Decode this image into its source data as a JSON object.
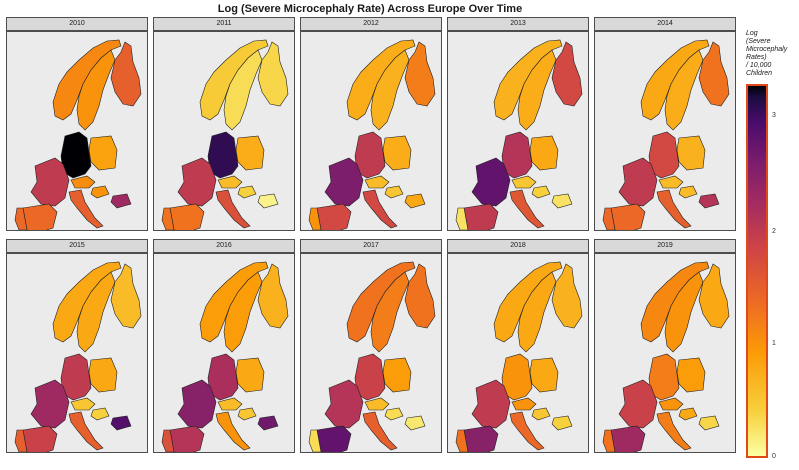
{
  "title": "Log (Severe Microcephaly Rate) Across Europe Over Time",
  "legend": {
    "title": "Log\n(Severe\nMicrocephaly\nRates)\n/ 10,000\nChildren",
    "ticks": [
      "3",
      "2",
      "1",
      "0"
    ],
    "range": [
      0,
      3.3
    ],
    "palette": "inferno"
  },
  "panels": [
    {
      "year": "2010",
      "values": {
        "norway": 1.1,
        "sweden": 1.0,
        "finland": 1.5,
        "germany": 3.3,
        "france": 2.0,
        "spain": 1.4,
        "portugal": 1.4,
        "italy": 1.5,
        "poland": 0.85,
        "austria": 1.05,
        "hungary": 1.0,
        "bulgaria": 2.3
      }
    },
    {
      "year": "2011",
      "values": {
        "norway": 0.45,
        "sweden": 0.3,
        "finland": 0.35,
        "germany": 3.1,
        "france": 2.0,
        "spain": 1.3,
        "portugal": 1.3,
        "italy": 1.7,
        "poland": 0.75,
        "austria": 0.6,
        "hungary": 0.4,
        "bulgaria": 0.1
      }
    },
    {
      "year": "2012",
      "values": {
        "norway": 0.75,
        "sweden": 0.7,
        "finland": 1.2,
        "germany": 2.0,
        "france": 2.6,
        "spain": 1.8,
        "portugal": 1.0,
        "italy": 1.8,
        "poland": 0.75,
        "austria": 0.6,
        "hungary": 0.5,
        "bulgaria": 0.8
      }
    },
    {
      "year": "2013",
      "values": {
        "norway": 0.7,
        "sweden": 0.75,
        "finland": 1.8,
        "germany": 2.1,
        "france": 2.8,
        "spain": 2.0,
        "portugal": 0.25,
        "italy": 1.6,
        "poland": 0.8,
        "austria": 0.5,
        "hungary": 0.4,
        "bulgaria": 0.25
      }
    },
    {
      "year": "2014",
      "values": {
        "norway": 0.8,
        "sweden": 0.75,
        "finland": 1.3,
        "germany": 1.8,
        "france": 2.0,
        "spain": 1.4,
        "portugal": 1.4,
        "italy": 1.5,
        "poland": 0.7,
        "austria": 0.6,
        "hungary": 0.6,
        "bulgaria": 2.1
      }
    },
    {
      "year": "2015",
      "values": {
        "norway": 0.8,
        "sweden": 0.8,
        "finland": 0.6,
        "germany": 2.0,
        "france": 2.3,
        "spain": 1.9,
        "portugal": 1.5,
        "italy": 1.5,
        "poland": 0.8,
        "austria": 0.5,
        "hungary": 0.4,
        "bulgaria": 2.9
      }
    },
    {
      "year": "2016",
      "values": {
        "norway": 0.9,
        "sweden": 0.9,
        "finland": 0.7,
        "germany": 2.2,
        "france": 2.5,
        "spain": 2.1,
        "portugal": 1.7,
        "italy": 1.0,
        "poland": 0.8,
        "austria": 0.6,
        "hungary": 0.5,
        "bulgaria": 2.7
      }
    },
    {
      "year": "2017",
      "values": {
        "norway": 1.3,
        "sweden": 1.2,
        "finland": 1.3,
        "germany": 1.9,
        "france": 2.1,
        "spain": 2.8,
        "portugal": 0.3,
        "italy": 1.5,
        "poland": 0.9,
        "austria": 0.6,
        "hungary": 0.3,
        "bulgaria": 0.2
      }
    },
    {
      "year": "2018",
      "values": {
        "norway": 0.8,
        "sweden": 0.8,
        "finland": 0.7,
        "germany": 1.0,
        "france": 2.0,
        "spain": 2.5,
        "portugal": 1.3,
        "italy": 1.4,
        "poland": 0.8,
        "austria": 1.0,
        "hungary": 0.5,
        "bulgaria": 0.4
      }
    },
    {
      "year": "2019",
      "values": {
        "norway": 1.1,
        "sweden": 1.0,
        "finland": 0.8,
        "germany": 1.2,
        "france": 1.9,
        "spain": 2.3,
        "portugal": 1.3,
        "italy": 1.2,
        "poland": 0.9,
        "austria": 1.0,
        "hungary": 0.8,
        "bulgaria": 0.35
      }
    }
  ]
}
